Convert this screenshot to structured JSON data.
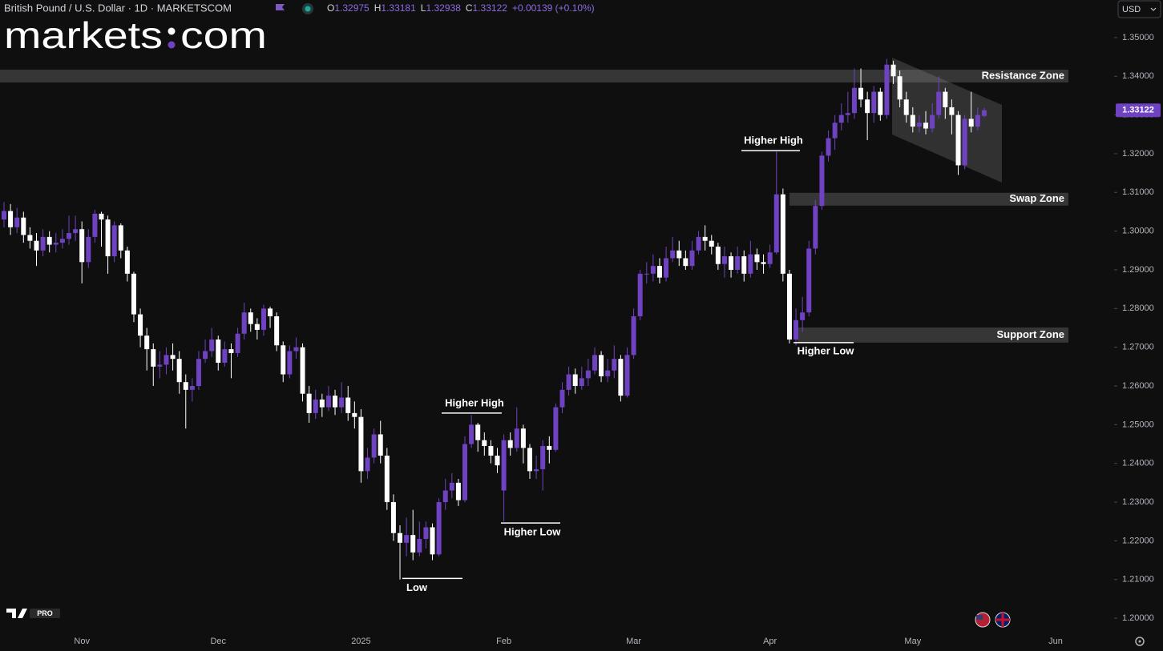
{
  "header": {
    "symbol": "British Pound / U.S. Dollar · 1D · MARKETSCOM",
    "ohlc": [
      {
        "key": "O",
        "value": "1.32975"
      },
      {
        "key": "H",
        "value": "1.33181"
      },
      {
        "key": "L",
        "value": "1.32938"
      },
      {
        "key": "C",
        "value": "1.33122"
      }
    ],
    "change": "+0.00139 (+0.10%)",
    "currency": "USD"
  },
  "logo": {
    "left": "markets",
    "right": "com"
  },
  "badge": "PRO",
  "chart_data": {
    "type": "candlestick",
    "categories": [
      null,
      null,
      null,
      null,
      null,
      null,
      null,
      null,
      null,
      null,
      null,
      null,
      "Nov",
      null,
      null,
      null,
      null,
      null,
      null,
      null,
      null,
      null,
      null,
      null,
      null,
      null,
      null,
      null,
      null,
      null,
      null,
      null,
      null,
      "Dec",
      null,
      null,
      null,
      null,
      null,
      null,
      null,
      null,
      null,
      null,
      null,
      null,
      null,
      null,
      null,
      null,
      null,
      null,
      null,
      null,
      null,
      "2025",
      null,
      null,
      null,
      null,
      null,
      null,
      null,
      null,
      null,
      null,
      null,
      null,
      null,
      null,
      null,
      null,
      null,
      null,
      null,
      null,
      null,
      "Feb",
      null,
      null,
      null,
      null,
      null,
      null,
      null,
      null,
      null,
      null,
      null,
      null,
      null,
      null,
      null,
      null,
      null,
      null,
      null,
      "Mar",
      null,
      null,
      null,
      null,
      null,
      null,
      null,
      null,
      null,
      null,
      null,
      null,
      null,
      null,
      null,
      null,
      null,
      null,
      null,
      null,
      "Apr",
      null,
      null,
      null,
      null,
      null,
      null,
      null,
      null,
      null,
      null,
      null,
      null,
      null,
      null,
      null,
      null,
      null,
      null,
      null,
      null,
      null,
      "May",
      null,
      null,
      null,
      null,
      null,
      null,
      null,
      null,
      null,
      null,
      null,
      null,
      null,
      null,
      null,
      null,
      null,
      null,
      null,
      null,
      null,
      "Jun"
    ],
    "open": [
      1.303,
      1.3052,
      1.301,
      1.3035,
      1.299,
      1.2975,
      1.295,
      1.2985,
      1.2965,
      1.297,
      1.298,
      1.2995,
      1.3005,
      1.292,
      1.2985,
      1.3045,
      1.303,
      1.2935,
      1.3015,
      1.295,
      1.289,
      1.2785,
      1.273,
      1.2695,
      1.265,
      1.2655,
      1.268,
      1.267,
      1.261,
      1.259,
      1.26,
      1.267,
      1.269,
      1.272,
      1.266,
      1.2695,
      1.2685,
      1.2735,
      1.279,
      1.276,
      1.2745,
      1.28,
      1.278,
      1.2705,
      1.263,
      1.269,
      1.27,
      1.258,
      1.253,
      1.2565,
      1.2545,
      1.2575,
      1.2545,
      1.257,
      1.253,
      1.252,
      1.238,
      1.2415,
      1.2475,
      1.242,
      1.23,
      1.222,
      1.2195,
      1.2215,
      1.217,
      1.2205,
      1.2235,
      1.2165,
      1.23,
      1.233,
      1.235,
      1.2305,
      1.245,
      1.25,
      1.246,
      1.2445,
      1.242,
      1.233,
      1.246,
      1.244,
      1.249,
      1.244,
      1.238,
      1.2385,
      1.2445,
      1.2435,
      1.2545,
      1.259,
      1.263,
      1.26,
      1.262,
      1.264,
      1.268,
      1.2625,
      1.264,
      1.267,
      1.2575,
      1.268,
      1.278,
      1.289,
      1.289,
      1.291,
      1.288,
      1.293,
      1.295,
      1.293,
      1.291,
      1.295,
      1.2985,
      1.2975,
      1.296,
      1.2915,
      1.2935,
      1.29,
      1.2935,
      1.289,
      1.294,
      1.292,
      1.2915,
      1.2945,
      1.3095,
      1.289,
      1.272,
      1.277,
      1.279,
      1.2955,
      1.3065,
      1.3195,
      1.324,
      1.328,
      1.33,
      1.3305,
      1.337,
      1.334,
      1.3305,
      1.336,
      1.33,
      1.343,
      1.34,
      1.334,
      1.33,
      1.327,
      1.328,
      1.3265,
      1.33,
      1.336,
      1.332,
      1.33,
      1.317,
      1.329,
      1.327,
      1.32975,
      null,
      null,
      null,
      null,
      null,
      null,
      null,
      null,
      null,
      null,
      null
    ],
    "high": [
      1.3075,
      1.307,
      1.306,
      1.305,
      1.301,
      1.2995,
      1.3005,
      1.3,
      1.2995,
      1.3005,
      1.304,
      1.304,
      1.3025,
      1.3005,
      1.3055,
      1.305,
      1.304,
      1.3025,
      1.302,
      1.296,
      1.2895,
      1.28,
      1.275,
      1.271,
      1.269,
      1.27,
      1.271,
      1.269,
      1.263,
      1.262,
      1.269,
      1.272,
      1.275,
      1.273,
      1.2715,
      1.271,
      1.275,
      1.2815,
      1.28,
      1.2775,
      1.281,
      1.2805,
      1.279,
      1.2715,
      1.2705,
      1.2725,
      1.271,
      1.26,
      1.259,
      1.258,
      1.26,
      1.259,
      1.261,
      1.26,
      1.256,
      1.254,
      1.244,
      1.249,
      1.251,
      1.244,
      1.232,
      1.224,
      1.226,
      1.228,
      1.225,
      1.225,
      1.2245,
      1.231,
      1.236,
      1.2375,
      1.236,
      1.247,
      1.2525,
      1.2505,
      1.248,
      1.246,
      1.244,
      1.2475,
      1.248,
      1.2545,
      1.25,
      1.245,
      1.242,
      1.246,
      1.247,
      1.2555,
      1.261,
      1.265,
      1.2645,
      1.265,
      1.267,
      1.27,
      1.269,
      1.267,
      1.2705,
      1.268,
      1.27,
      1.28,
      1.29,
      1.292,
      1.294,
      1.293,
      1.296,
      1.2985,
      1.2975,
      1.295,
      1.2975,
      1.3,
      1.3015,
      1.299,
      1.297,
      1.296,
      1.2945,
      1.296,
      1.295,
      1.2975,
      1.2955,
      1.294,
      1.2965,
      1.3205,
      1.311,
      1.29,
      1.28,
      1.283,
      1.2975,
      1.308,
      1.3205,
      1.326,
      1.33,
      1.333,
      1.336,
      1.342,
      1.342,
      1.336,
      1.3375,
      1.337,
      1.3445,
      1.344,
      1.3415,
      1.336,
      1.332,
      1.33,
      1.331,
      1.333,
      1.34,
      1.337,
      1.334,
      1.331,
      1.33,
      1.336,
      1.332,
      1.33181,
      null,
      null,
      null,
      null,
      null,
      null,
      null,
      null,
      null,
      null,
      null
    ],
    "low": [
      1.301,
      1.299,
      1.2995,
      1.297,
      1.2955,
      1.291,
      1.2935,
      1.2945,
      1.2945,
      1.2955,
      1.2965,
      1.2975,
      1.2865,
      1.2905,
      1.297,
      1.296,
      1.289,
      1.292,
      1.293,
      1.287,
      1.2765,
      1.27,
      1.264,
      1.26,
      1.262,
      1.263,
      1.264,
      1.258,
      1.249,
      1.256,
      1.259,
      1.266,
      1.2675,
      1.264,
      1.265,
      1.262,
      1.2675,
      1.272,
      1.274,
      1.272,
      1.273,
      1.275,
      1.269,
      1.261,
      1.262,
      1.267,
      1.256,
      1.2505,
      1.2515,
      1.252,
      1.2535,
      1.2525,
      1.253,
      1.251,
      1.249,
      1.235,
      1.236,
      1.24,
      1.24,
      1.228,
      1.22,
      1.21,
      1.216,
      1.215,
      1.216,
      1.218,
      1.215,
      1.216,
      1.228,
      1.231,
      1.229,
      1.23,
      1.244,
      1.243,
      1.242,
      1.24,
      1.2375,
      1.225,
      1.242,
      1.243,
      1.24,
      1.236,
      1.236,
      1.233,
      1.24,
      1.243,
      1.253,
      1.2575,
      1.258,
      1.259,
      1.26,
      1.263,
      1.261,
      1.261,
      1.262,
      1.256,
      1.257,
      1.267,
      1.277,
      1.2865,
      1.287,
      1.2865,
      1.287,
      1.292,
      1.291,
      1.29,
      1.29,
      1.294,
      1.295,
      1.294,
      1.29,
      1.288,
      1.288,
      1.289,
      1.287,
      1.288,
      1.29,
      1.289,
      1.2905,
      1.294,
      1.287,
      1.271,
      1.2705,
      1.274,
      1.278,
      1.294,
      1.3055,
      1.318,
      1.321,
      1.326,
      1.328,
      1.329,
      1.332,
      1.3235,
      1.328,
      1.3285,
      1.329,
      1.338,
      1.332,
      1.328,
      1.3255,
      1.3255,
      1.325,
      1.3255,
      1.329,
      1.329,
      1.325,
      1.3145,
      1.316,
      1.3255,
      1.326,
      1.32938,
      null,
      null,
      null,
      null,
      null,
      null,
      null,
      null,
      null,
      null,
      null
    ],
    "close": [
      1.3052,
      1.301,
      1.3035,
      1.299,
      1.2975,
      1.295,
      1.2985,
      1.2965,
      1.297,
      1.298,
      1.2995,
      1.3005,
      1.292,
      1.2985,
      1.3045,
      1.303,
      1.2935,
      1.3015,
      1.295,
      1.289,
      1.2785,
      1.273,
      1.2695,
      1.265,
      1.2655,
      1.268,
      1.267,
      1.261,
      1.259,
      1.26,
      1.267,
      1.269,
      1.272,
      1.266,
      1.2695,
      1.2685,
      1.2735,
      1.279,
      1.276,
      1.2745,
      1.28,
      1.278,
      1.2705,
      1.263,
      1.269,
      1.27,
      1.258,
      1.253,
      1.2565,
      1.2545,
      1.2575,
      1.2545,
      1.257,
      1.253,
      1.252,
      1.238,
      1.2415,
      1.2475,
      1.242,
      1.23,
      1.222,
      1.2195,
      1.2215,
      1.217,
      1.2205,
      1.2235,
      1.2165,
      1.23,
      1.233,
      1.235,
      1.2305,
      1.245,
      1.25,
      1.246,
      1.2445,
      1.242,
      1.2395,
      1.246,
      1.244,
      1.249,
      1.244,
      1.238,
      1.2385,
      1.2445,
      1.2435,
      1.2545,
      1.259,
      1.263,
      1.26,
      1.262,
      1.264,
      1.268,
      1.2625,
      1.264,
      1.267,
      1.2575,
      1.268,
      1.278,
      1.289,
      1.289,
      1.291,
      1.288,
      1.293,
      1.295,
      1.293,
      1.291,
      1.295,
      1.2985,
      1.2975,
      1.296,
      1.2915,
      1.2935,
      1.29,
      1.2935,
      1.289,
      1.294,
      1.292,
      1.2915,
      1.2945,
      1.3095,
      1.289,
      1.272,
      1.277,
      1.279,
      1.2955,
      1.3065,
      1.3195,
      1.324,
      1.328,
      1.33,
      1.3305,
      1.337,
      1.334,
      1.3305,
      1.336,
      1.33,
      1.343,
      1.34,
      1.334,
      1.33,
      1.327,
      1.328,
      1.3265,
      1.33,
      1.336,
      1.332,
      1.33,
      1.317,
      1.329,
      1.327,
      1.33,
      1.33122,
      null,
      null,
      null,
      null,
      null,
      null,
      null,
      null,
      null,
      null,
      null
    ],
    "up_color": "#6f42c1",
    "down_color": "#ffffff",
    "ylim": [
      1.1963,
      1.3597
    ],
    "yticks": [
      {
        "value": 1.2,
        "label": "1.20000"
      },
      {
        "value": 1.21,
        "label": "1.21000"
      },
      {
        "value": 1.22,
        "label": "1.22000"
      },
      {
        "value": 1.23,
        "label": "1.23000"
      },
      {
        "value": 1.24,
        "label": "1.24000"
      },
      {
        "value": 1.25,
        "label": "1.25000"
      },
      {
        "value": 1.26,
        "label": "1.26000"
      },
      {
        "value": 1.27,
        "label": "1.27000"
      },
      {
        "value": 1.28,
        "label": "1.28000"
      },
      {
        "value": 1.29,
        "label": "1.29000"
      },
      {
        "value": 1.3,
        "label": "1.30000"
      },
      {
        "value": 1.31,
        "label": "1.31000"
      },
      {
        "value": 1.32,
        "label": "1.32000"
      },
      {
        "value": 1.33,
        "label": "1.33000"
      },
      {
        "value": 1.34,
        "label": "1.34000"
      },
      {
        "value": 1.35,
        "label": "1.35000"
      }
    ],
    "last_price_label": "1.33122",
    "zones": [
      {
        "label": "Resistance Zone",
        "low": 1.3384,
        "high": 1.3417
      },
      {
        "label": "Swap Zone",
        "low": 1.3066,
        "high": 1.3099
      },
      {
        "label": "Support Zone",
        "low": 1.2712,
        "high": 1.2751
      }
    ],
    "annotations": [
      {
        "text": "Higher High",
        "value": 1.3208
      },
      {
        "text": "Higher Low",
        "value": 1.2712
      },
      {
        "text": "Higher High",
        "value": 1.253
      },
      {
        "text": "Higher Low",
        "value": 1.2246
      },
      {
        "text": "Low",
        "value": 1.2103
      }
    ]
  }
}
